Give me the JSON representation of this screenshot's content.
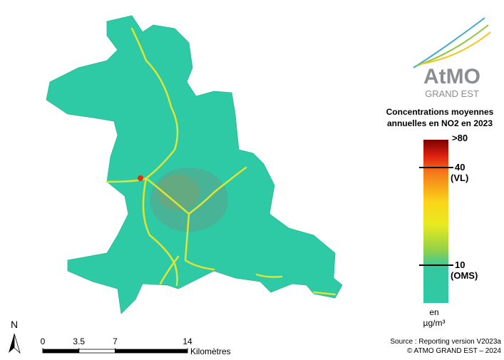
{
  "logo": {
    "name": "AtMO",
    "region": "GRAND EST"
  },
  "legend": {
    "title_lines": [
      "Concentrations moyennes",
      "annuelles en NO2 en 2023"
    ],
    "max_label": ">80",
    "thresholds": [
      {
        "value": 40,
        "label": "(VL)"
      },
      {
        "value": 10,
        "label": "(OMS)"
      }
    ],
    "unit_lines": [
      "en",
      "µg/m³"
    ]
  },
  "scale_bar": {
    "ticks": [
      0,
      3.5,
      7,
      14
    ],
    "unit": "Kilomètres"
  },
  "north": "N",
  "source_lines": [
    "Source : Reporting version V2023a",
    "© ATMO GRAND EST – 2024"
  ]
}
